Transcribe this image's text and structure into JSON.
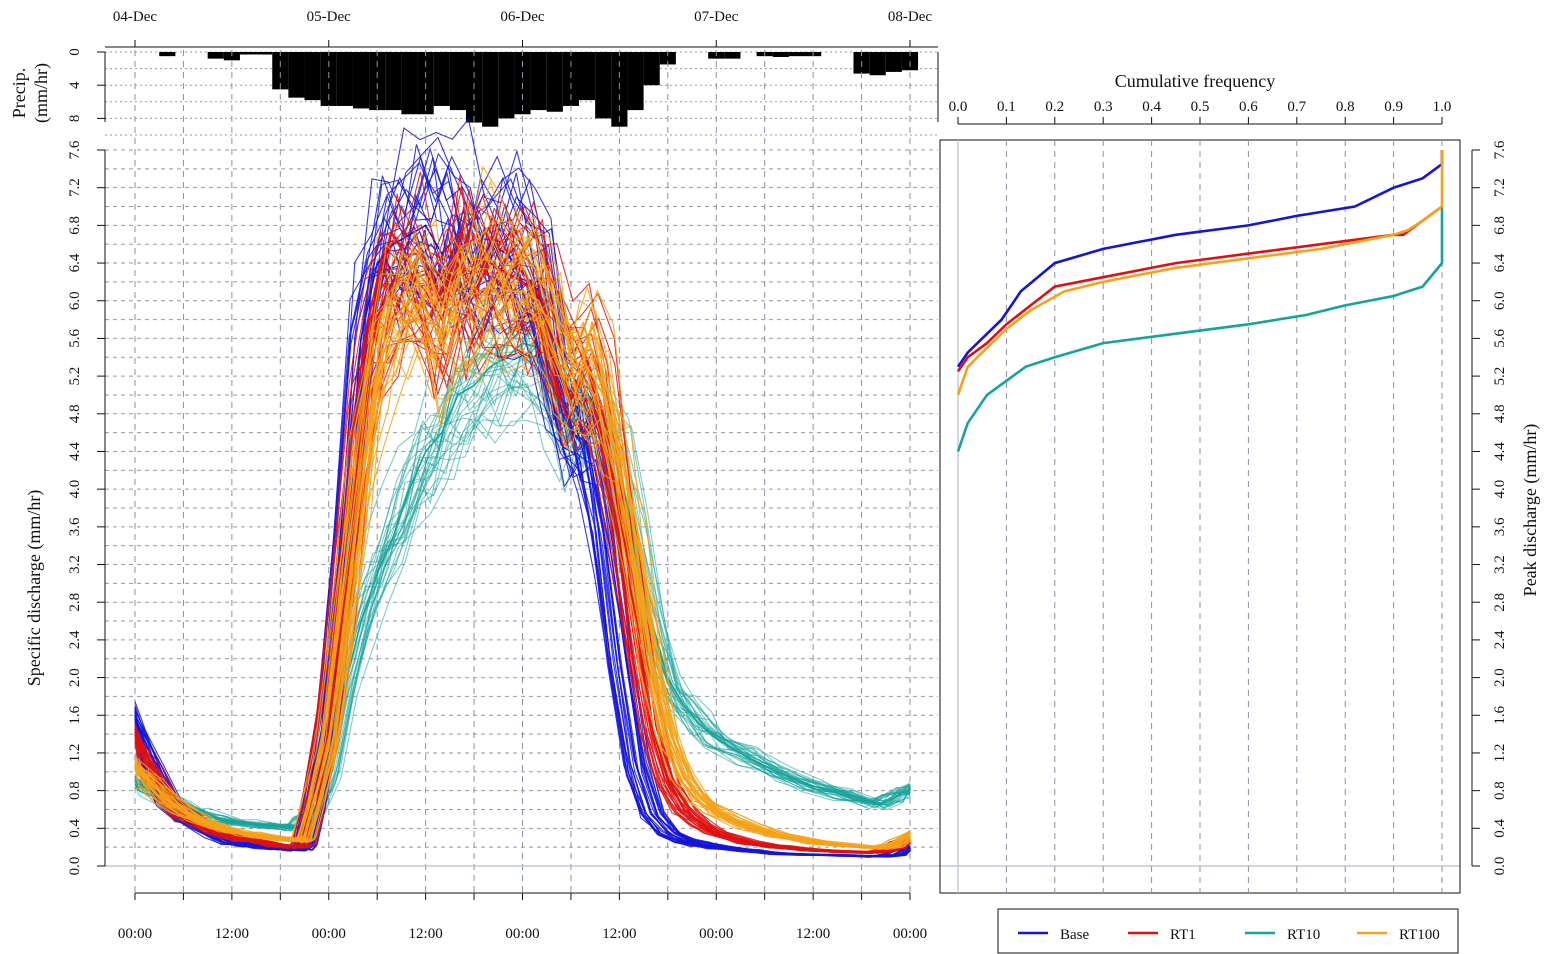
{
  "colors": {
    "Base": "#1515d8",
    "RT1": "#e01010",
    "RT10": "#16a39a",
    "RT100": "#f5a21a"
  },
  "chart_data": [
    {
      "type": "bar",
      "ylabel_lines": [
        "Precip.",
        "(mm/hr)"
      ],
      "top_date_labels": [
        "04-Dec",
        "05-Dec",
        "06-Dec",
        "07-Dec",
        "08-Dec"
      ],
      "yticks": [
        "0",
        "4",
        "8"
      ],
      "ylim": [
        0,
        10
      ],
      "x_hours": [
        4,
        10,
        12,
        14,
        16,
        18,
        20,
        22,
        24,
        26,
        28,
        30,
        32,
        34,
        36,
        38,
        40,
        42,
        44,
        46,
        48,
        50,
        52,
        54,
        56,
        58,
        60,
        62,
        64,
        66,
        72,
        74,
        78,
        80,
        82,
        84,
        90,
        92,
        94,
        96
      ],
      "values": [
        0.5,
        0.8,
        1.0,
        0.3,
        0.3,
        4.5,
        5.5,
        5.8,
        6.5,
        6.5,
        6.8,
        7.0,
        7.0,
        7.5,
        7.5,
        6.5,
        7.0,
        8.5,
        9.0,
        8.0,
        7.5,
        7.0,
        7.2,
        6.5,
        5.8,
        8.0,
        9.0,
        7.0,
        4.0,
        1.5,
        0.8,
        0.8,
        0.5,
        0.6,
        0.5,
        0.5,
        2.6,
        2.8,
        2.4,
        2.2
      ]
    },
    {
      "type": "line",
      "ylabel": "Specific discharge (mm/hr)",
      "xticks": [
        "00:00",
        "12:00",
        "00:00",
        "12:00",
        "00:00",
        "12:00",
        "00:00",
        "12:00",
        "00:00"
      ],
      "xlim_hours": [
        0,
        96
      ],
      "yticks": [
        "0.0",
        "0.4",
        "0.8",
        "1.2",
        "1.6",
        "2.0",
        "2.4",
        "2.8",
        "3.2",
        "3.6",
        "4.0",
        "4.4",
        "4.8",
        "5.2",
        "5.6",
        "6.0",
        "6.4",
        "6.8",
        "7.2",
        "7.6"
      ],
      "ylim": [
        0,
        7.6
      ],
      "x_hours": [
        0,
        2,
        4,
        6,
        8,
        10,
        12,
        14,
        16,
        18,
        20,
        20.5,
        21,
        22,
        24,
        26,
        28,
        30,
        32,
        34,
        36,
        38,
        40,
        42,
        44,
        46,
        48,
        50,
        52,
        54,
        56,
        58,
        60,
        62,
        64,
        66,
        68,
        70,
        72,
        76,
        80,
        84,
        88,
        92,
        94,
        95,
        96
      ],
      "series": [
        {
          "name": "Base",
          "count": 28,
          "values": [
            1.6,
            1.05,
            0.7,
            0.52,
            0.42,
            0.32,
            0.25,
            0.22,
            0.2,
            0.18,
            0.17,
            0.18,
            0.22,
            0.6,
            1.6,
            3.4,
            5.6,
            6.4,
            6.6,
            6.7,
            6.8,
            6.5,
            6.7,
            6.3,
            6.6,
            6.5,
            6.3,
            6.1,
            5.2,
            4.6,
            4.5,
            3.6,
            2.2,
            1.1,
            0.55,
            0.35,
            0.27,
            0.23,
            0.2,
            0.16,
            0.13,
            0.12,
            0.11,
            0.1,
            0.12,
            0.16,
            0.2
          ]
        },
        {
          "name": "RT1",
          "count": 28,
          "values": [
            1.4,
            1.0,
            0.72,
            0.55,
            0.45,
            0.38,
            0.32,
            0.28,
            0.25,
            0.22,
            0.2,
            0.21,
            0.25,
            0.6,
            1.5,
            3.0,
            4.7,
            5.8,
            6.2,
            6.3,
            6.1,
            5.8,
            6.4,
            6.1,
            6.4,
            6.3,
            6.2,
            6.1,
            5.6,
            5.2,
            5.3,
            4.8,
            3.8,
            2.6,
            1.5,
            0.9,
            0.6,
            0.45,
            0.35,
            0.25,
            0.2,
            0.17,
            0.15,
            0.14,
            0.18,
            0.24,
            0.3
          ]
        },
        {
          "name": "RT10",
          "count": 28,
          "values": [
            0.9,
            0.8,
            0.7,
            0.62,
            0.56,
            0.51,
            0.47,
            0.45,
            0.43,
            0.42,
            0.4,
            0.44,
            0.5,
            0.55,
            1.0,
            1.9,
            2.6,
            3.1,
            3.5,
            4.0,
            4.4,
            4.6,
            5.0,
            5.1,
            5.3,
            5.4,
            5.55,
            5.5,
            5.0,
            4.6,
            5.0,
            4.8,
            4.2,
            3.4,
            2.6,
            2.0,
            1.7,
            1.5,
            1.35,
            1.15,
            0.98,
            0.85,
            0.75,
            0.65,
            0.72,
            0.78,
            0.82
          ]
        },
        {
          "name": "RT100",
          "count": 28,
          "values": [
            1.1,
            0.88,
            0.7,
            0.58,
            0.49,
            0.42,
            0.37,
            0.34,
            0.31,
            0.29,
            0.27,
            0.28,
            0.3,
            0.6,
            1.3,
            2.6,
            4.0,
            5.2,
            5.8,
            6.0,
            5.9,
            5.6,
            6.0,
            5.9,
            6.2,
            6.1,
            6.1,
            6.0,
            5.6,
            5.2,
            5.3,
            5.0,
            4.2,
            3.2,
            2.2,
            1.4,
            0.95,
            0.72,
            0.58,
            0.42,
            0.32,
            0.26,
            0.22,
            0.19,
            0.22,
            0.28,
            0.35
          ]
        }
      ]
    },
    {
      "type": "line",
      "xlabel": "Cumulative frequency",
      "ylabel": "Peak discharge (mm/hr)",
      "xticks": [
        "0.0",
        "0.1",
        "0.2",
        "0.3",
        "0.4",
        "0.5",
        "0.6",
        "0.7",
        "0.8",
        "0.9",
        "1.0"
      ],
      "xlim": [
        0,
        1.0
      ],
      "ylim": [
        0,
        7.6
      ],
      "legend_position": "bottom-right",
      "series": [
        {
          "name": "Base",
          "x": [
            0.0,
            0.02,
            0.05,
            0.09,
            0.13,
            0.2,
            0.3,
            0.45,
            0.6,
            0.7,
            0.82,
            0.9,
            0.96,
            1.0,
            1.0
          ],
          "y": [
            5.3,
            5.45,
            5.6,
            5.8,
            6.1,
            6.4,
            6.55,
            6.7,
            6.8,
            6.9,
            7.0,
            7.2,
            7.3,
            7.45,
            7.6
          ]
        },
        {
          "name": "RT1",
          "x": [
            0.0,
            0.02,
            0.06,
            0.1,
            0.15,
            0.2,
            0.3,
            0.45,
            0.6,
            0.75,
            0.9,
            0.92,
            0.96,
            1.0,
            1.0
          ],
          "y": [
            5.25,
            5.4,
            5.55,
            5.75,
            5.95,
            6.15,
            6.25,
            6.4,
            6.5,
            6.6,
            6.7,
            6.7,
            6.85,
            7.0,
            7.0
          ]
        },
        {
          "name": "RT10",
          "x": [
            0.0,
            0.02,
            0.06,
            0.1,
            0.14,
            0.2,
            0.3,
            0.45,
            0.6,
            0.72,
            0.8,
            0.9,
            0.96,
            1.0,
            1.0
          ],
          "y": [
            4.4,
            4.7,
            5.0,
            5.15,
            5.3,
            5.4,
            5.55,
            5.65,
            5.75,
            5.85,
            5.95,
            6.05,
            6.15,
            6.4,
            7.0
          ]
        },
        {
          "name": "RT100",
          "x": [
            0.0,
            0.02,
            0.06,
            0.1,
            0.15,
            0.22,
            0.3,
            0.45,
            0.6,
            0.75,
            0.9,
            0.93,
            0.96,
            1.0,
            1.0
          ],
          "y": [
            5.0,
            5.3,
            5.5,
            5.7,
            5.9,
            6.1,
            6.2,
            6.35,
            6.45,
            6.55,
            6.7,
            6.75,
            6.85,
            7.0,
            7.6
          ]
        }
      ]
    }
  ]
}
